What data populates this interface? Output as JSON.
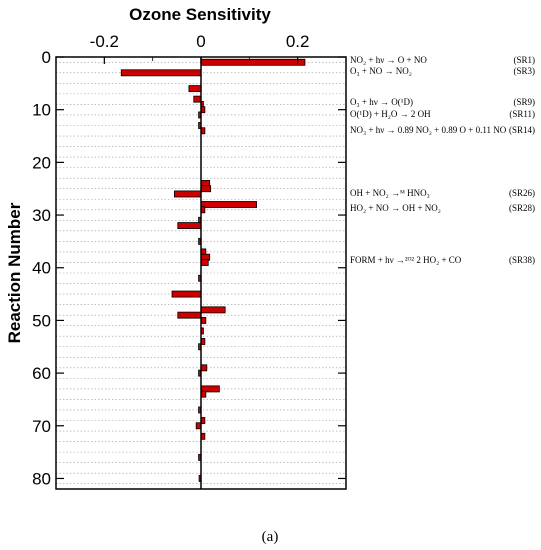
{
  "chart_data": {
    "type": "bar",
    "orientation": "horizontal",
    "title": "Ozone Sensitivity",
    "xlabel": "",
    "ylabel": "Reaction Number",
    "xlim": [
      -0.3,
      0.3
    ],
    "ylim": [
      0,
      82
    ],
    "xticks": [
      "-0.2",
      "0",
      "0.2"
    ],
    "xtick_values": [
      -0.2,
      0,
      0.2
    ],
    "yticks": [
      "0",
      "10",
      "20",
      "30",
      "40",
      "50",
      "60",
      "70",
      "80"
    ],
    "ytick_values": [
      0,
      10,
      20,
      30,
      40,
      50,
      60,
      70,
      80
    ],
    "bar_color": "#cc0000",
    "grid": "dotted horizontal",
    "values": [
      {
        "reaction": 1,
        "value": 0.215
      },
      {
        "reaction": 3,
        "value": -0.165
      },
      {
        "reaction": 6,
        "value": -0.025
      },
      {
        "reaction": 8,
        "value": -0.015
      },
      {
        "reaction": 9,
        "value": 0.005
      },
      {
        "reaction": 10,
        "value": 0.008
      },
      {
        "reaction": 11,
        "value": -0.005
      },
      {
        "reaction": 13,
        "value": -0.005
      },
      {
        "reaction": 14,
        "value": 0.008
      },
      {
        "reaction": 24,
        "value": 0.018
      },
      {
        "reaction": 25,
        "value": 0.02
      },
      {
        "reaction": 26,
        "value": -0.055
      },
      {
        "reaction": 28,
        "value": 0.115
      },
      {
        "reaction": 29,
        "value": 0.008
      },
      {
        "reaction": 31,
        "value": -0.005
      },
      {
        "reaction": 32,
        "value": -0.048
      },
      {
        "reaction": 35,
        "value": -0.005
      },
      {
        "reaction": 37,
        "value": 0.01
      },
      {
        "reaction": 38,
        "value": 0.018
      },
      {
        "reaction": 39,
        "value": 0.015
      },
      {
        "reaction": 42,
        "value": -0.005
      },
      {
        "reaction": 45,
        "value": -0.06
      },
      {
        "reaction": 48,
        "value": 0.05
      },
      {
        "reaction": 49,
        "value": -0.048
      },
      {
        "reaction": 50,
        "value": 0.01
      },
      {
        "reaction": 52,
        "value": 0.005
      },
      {
        "reaction": 54,
        "value": 0.008
      },
      {
        "reaction": 55,
        "value": -0.005
      },
      {
        "reaction": 59,
        "value": 0.012
      },
      {
        "reaction": 60,
        "value": -0.005
      },
      {
        "reaction": 63,
        "value": 0.038
      },
      {
        "reaction": 64,
        "value": 0.01
      },
      {
        "reaction": 67,
        "value": -0.005
      },
      {
        "reaction": 69,
        "value": 0.008
      },
      {
        "reaction": 70,
        "value": -0.01
      },
      {
        "reaction": 72,
        "value": 0.008
      },
      {
        "reaction": 76,
        "value": -0.005
      },
      {
        "reaction": 80,
        "value": -0.004
      }
    ],
    "annotations": [
      {
        "reaction": 1,
        "label": "NO₂ + hν → O + NO",
        "id": "(SR1)"
      },
      {
        "reaction": 3,
        "label": "O₃ + NO → NO₂",
        "id": "(SR3)"
      },
      {
        "reaction": 9,
        "label": "O₃ + hν → O(¹D)",
        "id": "(SR9)"
      },
      {
        "reaction": 11,
        "label": "O(¹D) + H₂O → 2 OH",
        "id": "(SR11)"
      },
      {
        "reaction": 14,
        "label": "NO₃ + hν → 0.89 NO₂ + 0.89 O + 0.11 NO",
        "id": "(SR14)"
      },
      {
        "reaction": 26,
        "label": "OH + NO₂ →ᴹ HNO₃",
        "id": "(SR26)"
      },
      {
        "reaction": 28,
        "label": "HO₂ + NO → OH + NO₂",
        "id": "(SR28)"
      },
      {
        "reaction": 38,
        "label": "FORM + hν →²ᴼ² 2 HO₂ + CO",
        "id": "(SR38)"
      }
    ]
  },
  "caption": "(a)"
}
